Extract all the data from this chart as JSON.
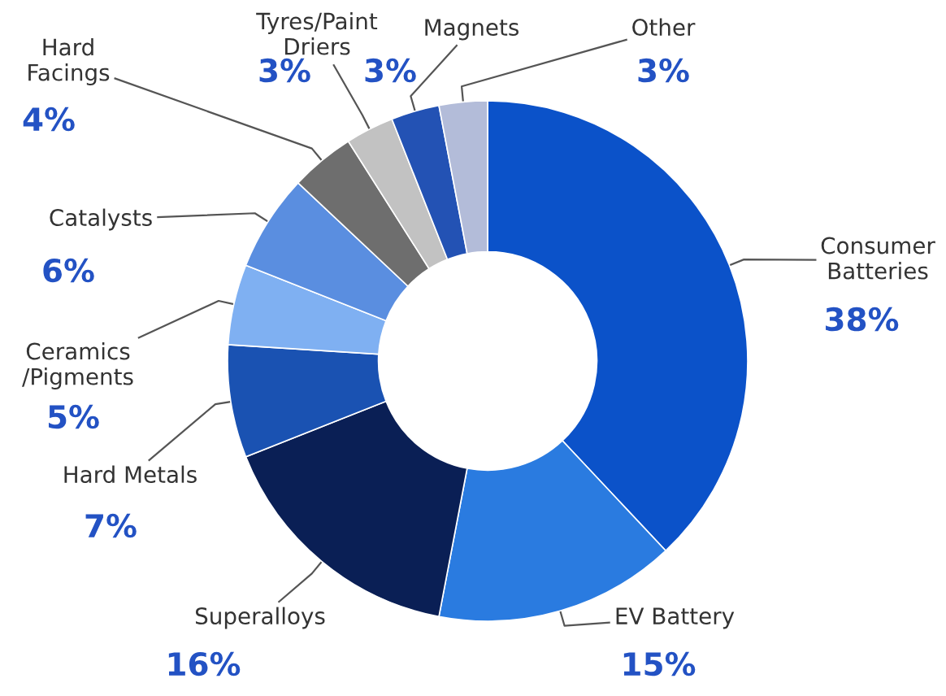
{
  "chart_data": {
    "type": "donut",
    "categories": [
      "Consumer\nBatteries",
      "EV Battery",
      "Superalloys",
      "Hard Metals",
      "Ceramics\n/Pigments",
      "Catalysts",
      "Hard\nFacings",
      "Tyres/Paint\nDriers",
      "Magnets",
      "Other"
    ],
    "values": [
      38,
      15,
      16,
      7,
      5,
      6,
      4,
      3,
      3,
      3
    ],
    "colors": [
      "#0b52c9",
      "#2a7be0",
      "#0a1f55",
      "#1a52b2",
      "#7fb0f2",
      "#5a8ee0",
      "#6e6e6e",
      "#c2c2c2",
      "#2352b4",
      "#b3bcd9"
    ],
    "value_labels": [
      "38%",
      "15%",
      "16%",
      "7%",
      "5%",
      "6%",
      "4%",
      "3%",
      "3%",
      "3%"
    ],
    "legend": false
  }
}
